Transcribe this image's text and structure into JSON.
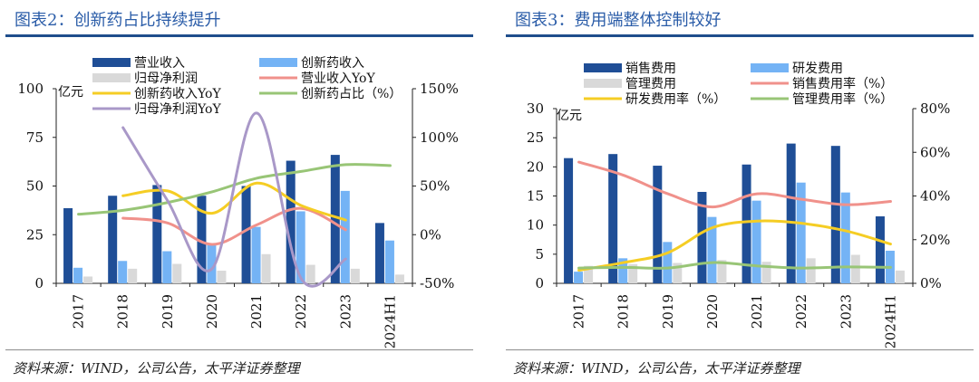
{
  "charts": [
    {
      "panel_title": "图表2：创新药占比持续提升",
      "source": "资料来源：WIND，公司公告，太平洋证券整理",
      "unit_label": "亿元",
      "chart_data": {
        "type": "bar",
        "categories": [
          "2017",
          "2018",
          "2019",
          "2020",
          "2021",
          "2022",
          "2023",
          "2024H1"
        ],
        "ylim": [
          0,
          100
        ],
        "yticks": [
          0,
          25,
          50,
          75,
          100
        ],
        "y2lim": [
          -50,
          150
        ],
        "y2ticks": [
          -50,
          0,
          50,
          100,
          150
        ],
        "y2tick_labels": [
          "-50%",
          "0%",
          "50%",
          "100%",
          "150%"
        ],
        "grid": false,
        "legend": "top",
        "series": [
          {
            "name": "营业收入",
            "kind": "bar",
            "axis": "left",
            "color": "#1f4e96",
            "values": [
              38.6,
              45,
              50.5,
              45,
              50,
              63,
              66,
              31
            ]
          },
          {
            "name": "创新药收入",
            "kind": "bar",
            "axis": "left",
            "color": "#74b3f5",
            "values": [
              8,
              11.5,
              16.5,
              20,
              29,
              37,
              47.5,
              22
            ]
          },
          {
            "name": "归母净利润",
            "kind": "bar",
            "axis": "left",
            "color": "#d9d9d9",
            "values": [
              3.5,
              7.5,
              10,
              6.5,
              15,
              9.5,
              7.5,
              4.5
            ]
          },
          {
            "name": "营业收入YoY",
            "kind": "line",
            "axis": "right",
            "color": "#f0918b",
            "values": [
              null,
              17,
              12,
              -10,
              10,
              27,
              5,
              null
            ]
          },
          {
            "name": "创新药收入YoY",
            "kind": "line",
            "axis": "right",
            "color": "#f5cd24",
            "values": [
              null,
              40,
              45,
              22,
              53,
              30,
              15,
              null
            ]
          },
          {
            "name": "创新药占比（%）",
            "kind": "line",
            "axis": "right",
            "color": "#98c576",
            "values": [
              21,
              25,
              33,
              44,
              58,
              65,
              72,
              71
            ]
          },
          {
            "name": "归母净利润YoY",
            "kind": "line",
            "axis": "right",
            "color": "#a998c8",
            "values": [
              null,
              110,
              35,
              -35,
              125,
              -45,
              -25,
              null
            ]
          }
        ]
      }
    },
    {
      "panel_title": "图表3：费用端整体控制较好",
      "source": "资料来源：WIND，公司公告，太平洋证券整理",
      "unit_label": "亿元",
      "chart_data": {
        "type": "bar",
        "categories": [
          "2017",
          "2018",
          "2019",
          "2020",
          "2021",
          "2022",
          "2023",
          "2024H1"
        ],
        "ylim": [
          0,
          30
        ],
        "yticks": [
          0,
          5,
          10,
          15,
          20,
          25,
          30
        ],
        "y2lim": [
          0,
          80
        ],
        "y2ticks": [
          0,
          20,
          40,
          60,
          80
        ],
        "y2tick_labels": [
          "0%",
          "20%",
          "40%",
          "60%",
          "80%"
        ],
        "grid": false,
        "legend": "top",
        "series": [
          {
            "name": "销售费用",
            "kind": "bar",
            "axis": "left",
            "color": "#1f4e96",
            "values": [
              21.5,
              22.2,
              20.2,
              15.7,
              20.4,
              24,
              23.6,
              11.5
            ]
          },
          {
            "name": "研发费用",
            "kind": "bar",
            "axis": "left",
            "color": "#74b3f5",
            "values": [
              2,
              4.3,
              7.1,
              11.4,
              14.2,
              17.3,
              15.6,
              5.6
            ]
          },
          {
            "name": "管理费用",
            "kind": "bar",
            "axis": "left",
            "color": "#d9d9d9",
            "values": [
              3,
              3.3,
              3.5,
              4,
              3.7,
              4.3,
              4.9,
              2.2
            ]
          },
          {
            "name": "销售费用率（%）",
            "kind": "line",
            "axis": "right",
            "color": "#f0918b",
            "values": [
              55.5,
              49.5,
              41,
              35,
              41,
              38.5,
              36,
              37.5
            ]
          },
          {
            "name": "研发费用率（%）",
            "kind": "line",
            "axis": "right",
            "color": "#f5cd24",
            "values": [
              6,
              9.5,
              14,
              25.5,
              28.5,
              27.5,
              24,
              18
            ]
          },
          {
            "name": "管理费用率（%）",
            "kind": "line",
            "axis": "right",
            "color": "#98c576",
            "values": [
              7,
              7.3,
              7,
              9.5,
              8,
              7,
              7.5,
              7.3
            ]
          }
        ]
      }
    }
  ]
}
